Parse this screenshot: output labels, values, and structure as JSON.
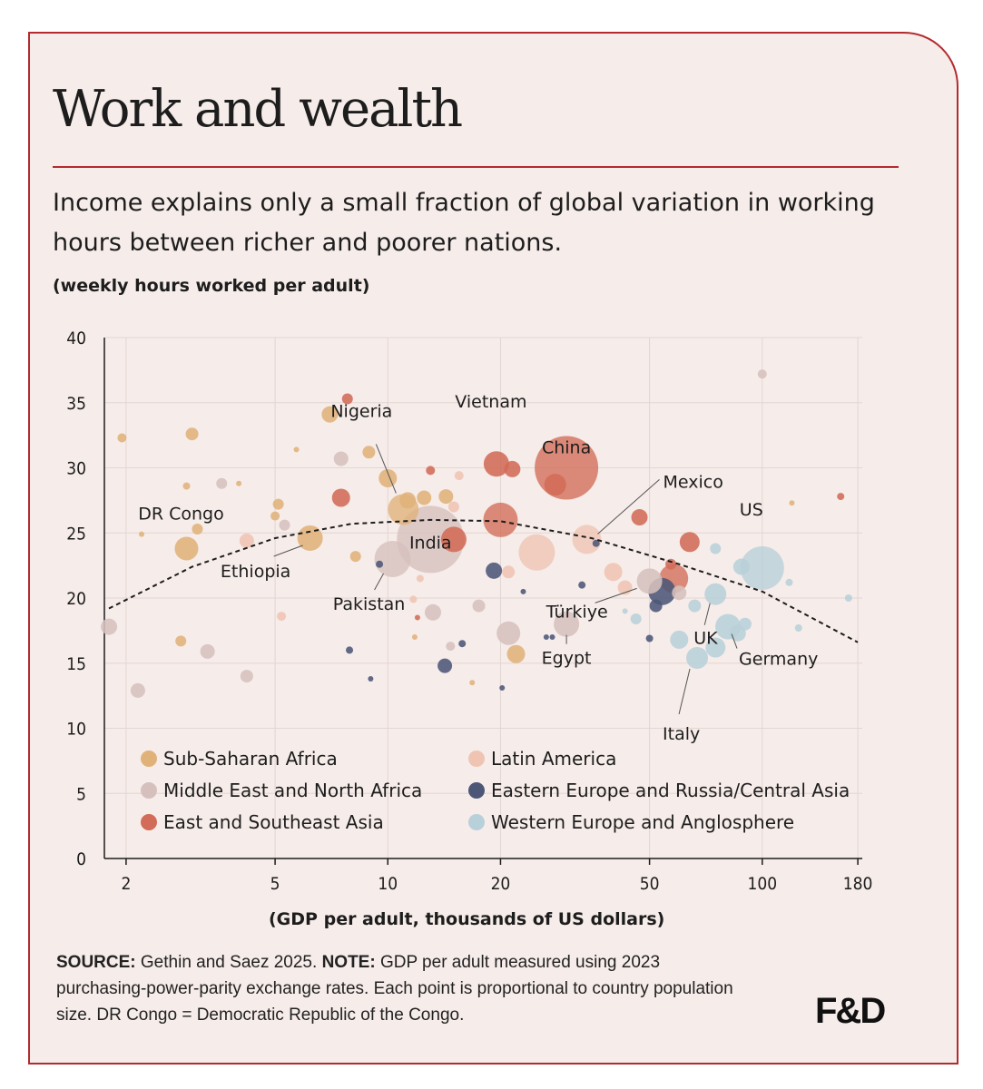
{
  "figure": {
    "title": "Work and wealth",
    "subtitle": "Income explains only a small fraction of global variation in working hours between richer and poorer nations.",
    "units_note": "(weekly hours worked per adult)",
    "xlabel": "(GDP per adult, thousands of US dollars)",
    "source_label": "SOURCE:",
    "source_text": "Gethin and Saez 2025.",
    "note_label": "NOTE:",
    "note_text": "GDP per adult measured using 2023 purchasing-power-parity exchange rates. Each point is proportional to country population size. DR Congo = Democratic Republic of the Congo.",
    "logo": "F&D"
  },
  "chart_data": {
    "type": "scatter",
    "x_scale": "log",
    "xlim": [
      1.75,
      185
    ],
    "ylim": [
      0,
      40
    ],
    "x_ticks": [
      2,
      5,
      10,
      20,
      50,
      100,
      180
    ],
    "y_ticks": [
      0,
      5,
      10,
      15,
      20,
      25,
      30,
      35,
      40
    ],
    "grid": true,
    "legend_position": "bottom-left",
    "size_encoding": "population",
    "regions": [
      {
        "key": "ssa",
        "name": "Sub-Saharan Africa",
        "color": "#e0b27a"
      },
      {
        "key": "mena",
        "name": "Middle East and North Africa",
        "color": "#d6c0bd"
      },
      {
        "key": "esa",
        "name": "East and Southeast Asia",
        "color": "#d26b57"
      },
      {
        "key": "lat",
        "name": "Latin America",
        "color": "#f0c4b3"
      },
      {
        "key": "eeu",
        "name": "Eastern Europe and Russia/Central Asia",
        "color": "#4c5778"
      },
      {
        "key": "weu",
        "name": "Western Europe and Anglosphere",
        "color": "#b8d0da"
      }
    ],
    "trend": [
      [
        1.8,
        19.2
      ],
      [
        3,
        22.4
      ],
      [
        5,
        24.6
      ],
      [
        8,
        25.7
      ],
      [
        13,
        26.0
      ],
      [
        20,
        25.9
      ],
      [
        35,
        24.6
      ],
      [
        60,
        22.6
      ],
      [
        100,
        20.5
      ],
      [
        180,
        16.6
      ]
    ],
    "points": [
      {
        "label": "China",
        "x": 30,
        "y": 30.0,
        "r": 35,
        "region": "esa"
      },
      {
        "label": "India",
        "x": 13,
        "y": 24.5,
        "r": 37,
        "region": "mena"
      },
      {
        "label": "US",
        "x": 100,
        "y": 22.3,
        "r": 24,
        "region": "weu"
      },
      {
        "label": "Vietnam",
        "x": 19.5,
        "y": 30.3,
        "r": 14,
        "region": "esa"
      },
      {
        "label": "Nigeria",
        "x": 11,
        "y": 26.8,
        "r": 17,
        "region": "ssa"
      },
      {
        "label": "Pakistan",
        "x": 10.3,
        "y": 23.0,
        "r": 20,
        "region": "mena"
      },
      {
        "label": "Ethiopia",
        "x": 6.2,
        "y": 24.6,
        "r": 14,
        "region": "ssa"
      },
      {
        "label": "DR Congo",
        "x": 2.9,
        "y": 23.8,
        "r": 13,
        "region": "ssa"
      },
      {
        "label": "Mexico",
        "x": 34,
        "y": 24.5,
        "r": 16,
        "region": "lat"
      },
      {
        "label": "Türkiye",
        "x": 50,
        "y": 21.3,
        "r": 14,
        "region": "mena"
      },
      {
        "label": "Egypt",
        "x": 30,
        "y": 18.0,
        "r": 14,
        "region": "mena"
      },
      {
        "label": "UK",
        "x": 75,
        "y": 20.3,
        "r": 12,
        "region": "weu"
      },
      {
        "label": "Germany",
        "x": 81,
        "y": 17.8,
        "r": 14,
        "region": "weu"
      },
      {
        "label": "Italy",
        "x": 67,
        "y": 15.4,
        "r": 12,
        "region": "weu"
      },
      {
        "label": "",
        "x": 20,
        "y": 26.0,
        "r": 19,
        "region": "esa"
      },
      {
        "label": "",
        "x": 25,
        "y": 23.5,
        "r": 20,
        "region": "lat"
      },
      {
        "label": "",
        "x": 15,
        "y": 24.5,
        "r": 14,
        "region": "esa"
      },
      {
        "label": "",
        "x": 28,
        "y": 28.7,
        "r": 12,
        "region": "esa"
      },
      {
        "label": "",
        "x": 58,
        "y": 21.5,
        "r": 16,
        "region": "esa"
      },
      {
        "label": "",
        "x": 54,
        "y": 20.5,
        "r": 15,
        "region": "eeu"
      },
      {
        "label": "",
        "x": 21,
        "y": 17.3,
        "r": 13,
        "region": "mena"
      },
      {
        "label": "",
        "x": 22,
        "y": 15.7,
        "r": 10,
        "region": "ssa"
      },
      {
        "label": "",
        "x": 7.5,
        "y": 27.7,
        "r": 10,
        "region": "esa"
      },
      {
        "label": "",
        "x": 10,
        "y": 29.2,
        "r": 10,
        "region": "ssa"
      },
      {
        "label": "",
        "x": 7.0,
        "y": 34.1,
        "r": 9,
        "region": "ssa"
      },
      {
        "label": "",
        "x": 7.5,
        "y": 30.7,
        "r": 8,
        "region": "mena"
      },
      {
        "label": "",
        "x": 7.8,
        "y": 35.3,
        "r": 6,
        "region": "esa"
      },
      {
        "label": "",
        "x": 3.0,
        "y": 32.6,
        "r": 7,
        "region": "ssa"
      },
      {
        "label": "",
        "x": 1.95,
        "y": 32.3,
        "r": 5,
        "region": "ssa"
      },
      {
        "label": "",
        "x": 3.1,
        "y": 25.3,
        "r": 6,
        "region": "ssa"
      },
      {
        "label": "",
        "x": 3.6,
        "y": 28.8,
        "r": 6,
        "region": "mena"
      },
      {
        "label": "",
        "x": 4.2,
        "y": 24.4,
        "r": 8,
        "region": "lat"
      },
      {
        "label": "",
        "x": 5.1,
        "y": 27.2,
        "r": 6,
        "region": "ssa"
      },
      {
        "label": "",
        "x": 5.0,
        "y": 26.3,
        "r": 5,
        "region": "ssa"
      },
      {
        "label": "",
        "x": 5.3,
        "y": 25.6,
        "r": 6,
        "region": "mena"
      },
      {
        "label": "",
        "x": 8.9,
        "y": 31.2,
        "r": 7,
        "region": "ssa"
      },
      {
        "label": "",
        "x": 11.3,
        "y": 27.5,
        "r": 9,
        "region": "ssa"
      },
      {
        "label": "",
        "x": 12.5,
        "y": 27.7,
        "r": 8,
        "region": "ssa"
      },
      {
        "label": "",
        "x": 14.3,
        "y": 27.8,
        "r": 8,
        "region": "ssa"
      },
      {
        "label": "",
        "x": 13.0,
        "y": 29.8,
        "r": 5,
        "region": "esa"
      },
      {
        "label": "",
        "x": 15.5,
        "y": 29.4,
        "r": 5,
        "region": "lat"
      },
      {
        "label": "",
        "x": 21.0,
        "y": 22.0,
        "r": 7,
        "region": "lat"
      },
      {
        "label": "",
        "x": 21.5,
        "y": 29.9,
        "r": 9,
        "region": "esa"
      },
      {
        "label": "",
        "x": 19.2,
        "y": 22.1,
        "r": 9,
        "region": "eeu"
      },
      {
        "label": "",
        "x": 1.8,
        "y": 17.8,
        "r": 9,
        "region": "mena"
      },
      {
        "label": "",
        "x": 2.15,
        "y": 12.9,
        "r": 8,
        "region": "mena"
      },
      {
        "label": "",
        "x": 2.8,
        "y": 16.7,
        "r": 6,
        "region": "ssa"
      },
      {
        "label": "",
        "x": 3.3,
        "y": 15.9,
        "r": 8,
        "region": "mena"
      },
      {
        "label": "",
        "x": 4.2,
        "y": 14.0,
        "r": 7,
        "region": "mena"
      },
      {
        "label": "",
        "x": 5.2,
        "y": 18.6,
        "r": 5,
        "region": "lat"
      },
      {
        "label": "",
        "x": 8.2,
        "y": 23.2,
        "r": 6,
        "region": "ssa"
      },
      {
        "label": "",
        "x": 7.9,
        "y": 16.0,
        "r": 4,
        "region": "eeu"
      },
      {
        "label": "",
        "x": 13.2,
        "y": 18.9,
        "r": 9,
        "region": "mena"
      },
      {
        "label": "",
        "x": 14.2,
        "y": 14.8,
        "r": 8,
        "region": "eeu"
      },
      {
        "label": "",
        "x": 14.7,
        "y": 16.3,
        "r": 5,
        "region": "mena"
      },
      {
        "label": "",
        "x": 17.5,
        "y": 19.4,
        "r": 7,
        "region": "mena"
      },
      {
        "label": "",
        "x": 40,
        "y": 22.0,
        "r": 10,
        "region": "lat"
      },
      {
        "label": "",
        "x": 43,
        "y": 20.8,
        "r": 8,
        "region": "lat"
      },
      {
        "label": "",
        "x": 47,
        "y": 26.2,
        "r": 9,
        "region": "esa"
      },
      {
        "label": "",
        "x": 64,
        "y": 24.3,
        "r": 11,
        "region": "esa"
      },
      {
        "label": "",
        "x": 60,
        "y": 20.4,
        "r": 8,
        "region": "mena"
      },
      {
        "label": "",
        "x": 52,
        "y": 19.4,
        "r": 7,
        "region": "eeu"
      },
      {
        "label": "",
        "x": 57,
        "y": 22.6,
        "r": 6,
        "region": "esa"
      },
      {
        "label": "",
        "x": 75,
        "y": 23.8,
        "r": 6,
        "region": "weu"
      },
      {
        "label": "",
        "x": 88,
        "y": 22.4,
        "r": 9,
        "region": "weu"
      },
      {
        "label": "",
        "x": 60,
        "y": 16.8,
        "r": 10,
        "region": "weu"
      },
      {
        "label": "",
        "x": 75,
        "y": 16.2,
        "r": 11,
        "region": "weu"
      },
      {
        "label": "",
        "x": 86,
        "y": 17.3,
        "r": 9,
        "region": "weu"
      },
      {
        "label": "",
        "x": 90,
        "y": 18.0,
        "r": 7,
        "region": "weu"
      },
      {
        "label": "",
        "x": 46,
        "y": 18.4,
        "r": 6,
        "region": "weu"
      },
      {
        "label": "",
        "x": 66,
        "y": 19.4,
        "r": 7,
        "region": "weu"
      },
      {
        "label": "",
        "x": 100,
        "y": 37.2,
        "r": 5,
        "region": "mena"
      },
      {
        "label": "",
        "x": 162,
        "y": 27.8,
        "r": 4,
        "region": "esa"
      },
      {
        "label": "",
        "x": 125,
        "y": 17.7,
        "r": 4,
        "region": "weu"
      },
      {
        "label": "",
        "x": 170,
        "y": 20.0,
        "r": 4,
        "region": "weu"
      },
      {
        "label": "",
        "x": 118,
        "y": 21.2,
        "r": 4,
        "region": "weu"
      },
      {
        "label": "",
        "x": 50,
        "y": 16.9,
        "r": 4,
        "region": "eeu"
      },
      {
        "label": "",
        "x": 33,
        "y": 21.0,
        "r": 4,
        "region": "eeu"
      },
      {
        "label": "",
        "x": 36,
        "y": 24.2,
        "r": 4,
        "region": "eeu"
      },
      {
        "label": "",
        "x": 12.2,
        "y": 21.5,
        "r": 4,
        "region": "lat"
      },
      {
        "label": "",
        "x": 11.7,
        "y": 19.9,
        "r": 4,
        "region": "lat"
      },
      {
        "label": "",
        "x": 9.5,
        "y": 22.6,
        "r": 4,
        "region": "eeu"
      },
      {
        "label": "",
        "x": 9.0,
        "y": 13.8,
        "r": 3,
        "region": "eeu"
      },
      {
        "label": "",
        "x": 20.2,
        "y": 13.1,
        "r": 3,
        "region": "eeu"
      },
      {
        "label": "",
        "x": 23.0,
        "y": 20.5,
        "r": 3,
        "region": "eeu"
      },
      {
        "label": "",
        "x": 26.5,
        "y": 17.0,
        "r": 3,
        "region": "eeu"
      },
      {
        "label": "",
        "x": 27.5,
        "y": 17.0,
        "r": 3,
        "region": "eeu"
      },
      {
        "label": "",
        "x": 2.2,
        "y": 24.9,
        "r": 3,
        "region": "ssa"
      },
      {
        "label": "",
        "x": 2.9,
        "y": 28.6,
        "r": 4,
        "region": "ssa"
      },
      {
        "label": "",
        "x": 4.0,
        "y": 28.8,
        "r": 3,
        "region": "ssa"
      },
      {
        "label": "",
        "x": 5.7,
        "y": 31.4,
        "r": 3,
        "region": "ssa"
      },
      {
        "label": "",
        "x": 15.0,
        "y": 27.0,
        "r": 6,
        "region": "lat"
      },
      {
        "label": "",
        "x": 11.8,
        "y": 17.0,
        "r": 3,
        "region": "ssa"
      },
      {
        "label": "",
        "x": 12.0,
        "y": 18.5,
        "r": 3,
        "region": "esa"
      },
      {
        "label": "",
        "x": 16.8,
        "y": 13.5,
        "r": 3,
        "region": "ssa"
      },
      {
        "label": "",
        "x": 43,
        "y": 19.0,
        "r": 3,
        "region": "weu"
      },
      {
        "label": "",
        "x": 120,
        "y": 27.3,
        "r": 3,
        "region": "ssa"
      },
      {
        "label": "",
        "x": 15.8,
        "y": 16.5,
        "r": 4,
        "region": "eeu"
      }
    ],
    "annotations": [
      {
        "text": "Nigeria",
        "x": 11,
        "y": 26.8
      },
      {
        "text": "Vietnam",
        "x": 19.5,
        "y": 30.3
      },
      {
        "text": "China",
        "x": 30,
        "y": 30.0
      },
      {
        "text": "DR Congo",
        "x": 2.9,
        "y": 23.8
      },
      {
        "text": "India",
        "x": 13,
        "y": 24.5
      },
      {
        "text": "Mexico",
        "x": 34,
        "y": 24.5
      },
      {
        "text": "US",
        "x": 100,
        "y": 22.3
      },
      {
        "text": "Ethiopia",
        "x": 6.2,
        "y": 24.6
      },
      {
        "text": "Pakistan",
        "x": 10.3,
        "y": 23.0
      },
      {
        "text": "Türkiye",
        "x": 50,
        "y": 21.3
      },
      {
        "text": "UK",
        "x": 75,
        "y": 20.3
      },
      {
        "text": "Germany",
        "x": 81,
        "y": 17.8
      },
      {
        "text": "Egypt",
        "x": 30,
        "y": 18.0
      },
      {
        "text": "Italy",
        "x": 67,
        "y": 15.4
      }
    ]
  }
}
